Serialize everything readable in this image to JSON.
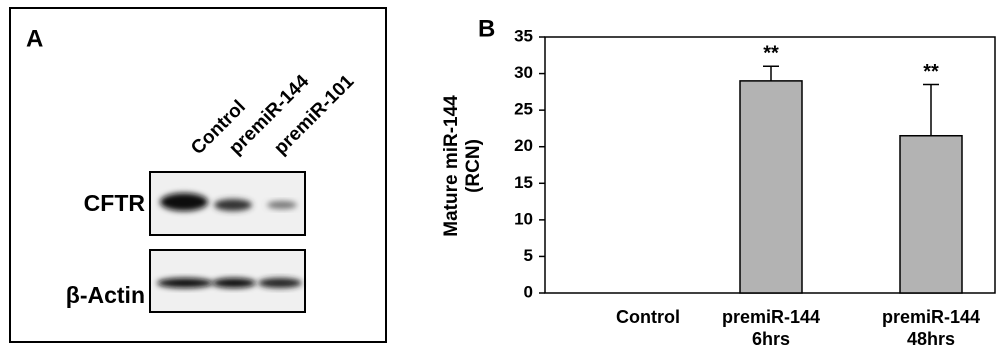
{
  "panel_a": {
    "label": "A",
    "lanes": [
      "Control",
      "premiR-144",
      "premiR-101"
    ],
    "rows": [
      "CFTR",
      "β-Actin"
    ]
  },
  "chart_data": {
    "type": "bar",
    "label": "B",
    "y_label": "Mature miR-144\n(RCN)",
    "categories": [
      "Control",
      "premiR-144\n6hrs",
      "premiR-144\n48hrs"
    ],
    "values": [
      0,
      29,
      21.5
    ],
    "errors": [
      0,
      2,
      7
    ],
    "annotations": [
      null,
      "**",
      "**"
    ],
    "color": "#b3b3b3",
    "ylim": [
      0,
      35
    ],
    "yticks": [
      0,
      5,
      10,
      15,
      20,
      25,
      30,
      35
    ],
    "grid": false
  }
}
